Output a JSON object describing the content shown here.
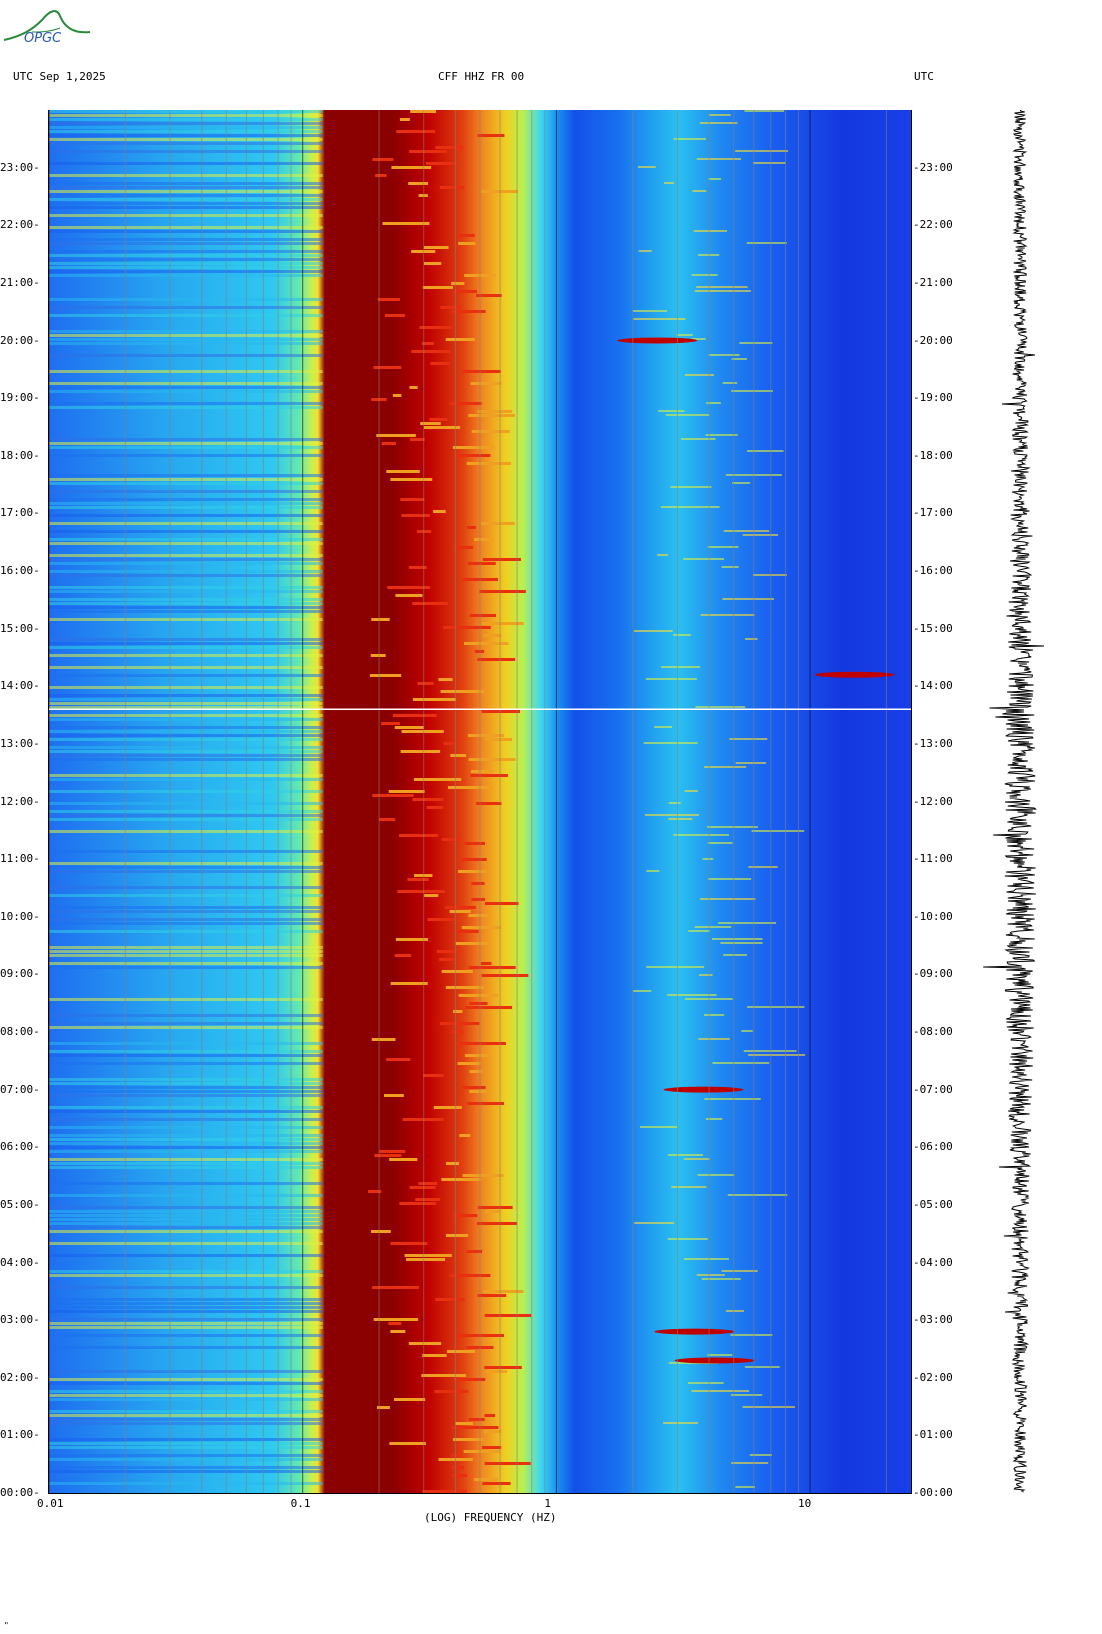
{
  "header": {
    "logo_text": "OPGC",
    "left_label": "UTC  Sep 1,2025",
    "center_label": "CFF HHZ FR 00",
    "right_label": "UTC"
  },
  "footer": {
    "xlabel": "(LOG) FREQUENCY (HZ)",
    "corner_mark": "\""
  },
  "colors": {
    "background": "#ffffff",
    "low_power": "#1438e0",
    "mid_power": "#2ac0f0",
    "high_power": "#8b0000"
  },
  "chart_data": [
    {
      "type": "heatmap",
      "title": "CFF HHZ FR 00",
      "xlabel": "(LOG) FREQUENCY (HZ)",
      "ylabel": "",
      "x_scale": "log",
      "xlim": [
        0.01,
        25
      ],
      "x_ticks": [
        "0.01",
        "0.1",
        "1",
        "10"
      ],
      "x_tick_values": [
        0.01,
        0.1,
        1,
        10
      ],
      "ylim": [
        "00:00",
        "24:00"
      ],
      "y_ticks": [
        "00:00",
        "01:00",
        "02:00",
        "03:00",
        "04:00",
        "05:00",
        "06:00",
        "07:00",
        "08:00",
        "09:00",
        "10:00",
        "11:00",
        "12:00",
        "13:00",
        "14:00",
        "15:00",
        "16:00",
        "17:00",
        "18:00",
        "19:00",
        "20:00",
        "21:00",
        "22:00",
        "23:00"
      ],
      "colormap": "jet",
      "grid": true,
      "highlights": [
        {
          "freq_hz": 3.5,
          "time": "02:48"
        },
        {
          "freq_hz": 4.2,
          "time": "02:18"
        },
        {
          "freq_hz": 3.8,
          "time": "07:00"
        },
        {
          "freq_hz": 2.5,
          "time": "20:00"
        },
        {
          "freq_hz": 15,
          "time": "14:12"
        }
      ]
    },
    {
      "type": "line",
      "title": "",
      "xlabel": "",
      "ylabel": "",
      "ylim": [
        "00:00",
        "24:00"
      ],
      "description_series": "seismogram trace"
    }
  ]
}
